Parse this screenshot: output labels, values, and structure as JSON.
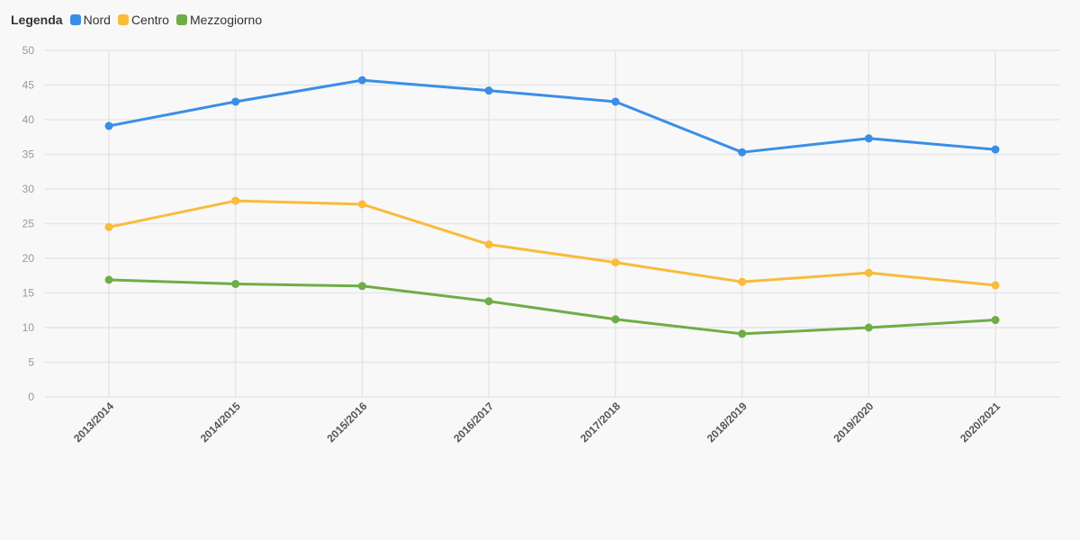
{
  "legend": {
    "title": "Legenda",
    "items": [
      {
        "label": "Nord",
        "color": "#3a8ee6"
      },
      {
        "label": "Centro",
        "color": "#f9bb3a"
      },
      {
        "label": "Mezzogiorno",
        "color": "#6fad47"
      }
    ]
  },
  "chart_data": {
    "type": "line",
    "title": "",
    "xlabel": "",
    "ylabel": "",
    "categories": [
      "2013/2014",
      "2014/2015",
      "2015/2016",
      "2016/2017",
      "2017/2018",
      "2018/2019",
      "2019/2020",
      "2020/2021"
    ],
    "ylim": [
      0,
      50
    ],
    "yticks": [
      0,
      5,
      10,
      15,
      20,
      25,
      30,
      35,
      40,
      45,
      50
    ],
    "grid": true,
    "legend_position": "top-left",
    "series": [
      {
        "name": "Nord",
        "color": "#3a8ee6",
        "values": [
          39.1,
          42.6,
          45.7,
          44.2,
          42.6,
          35.3,
          37.3,
          35.7
        ]
      },
      {
        "name": "Centro",
        "color": "#f9bb3a",
        "values": [
          24.5,
          28.3,
          27.8,
          22.0,
          19.4,
          16.6,
          17.9,
          16.1
        ]
      },
      {
        "name": "Mezzogiorno",
        "color": "#6fad47",
        "values": [
          16.9,
          16.3,
          16.0,
          13.8,
          11.2,
          9.1,
          10.0,
          11.1
        ]
      }
    ]
  }
}
